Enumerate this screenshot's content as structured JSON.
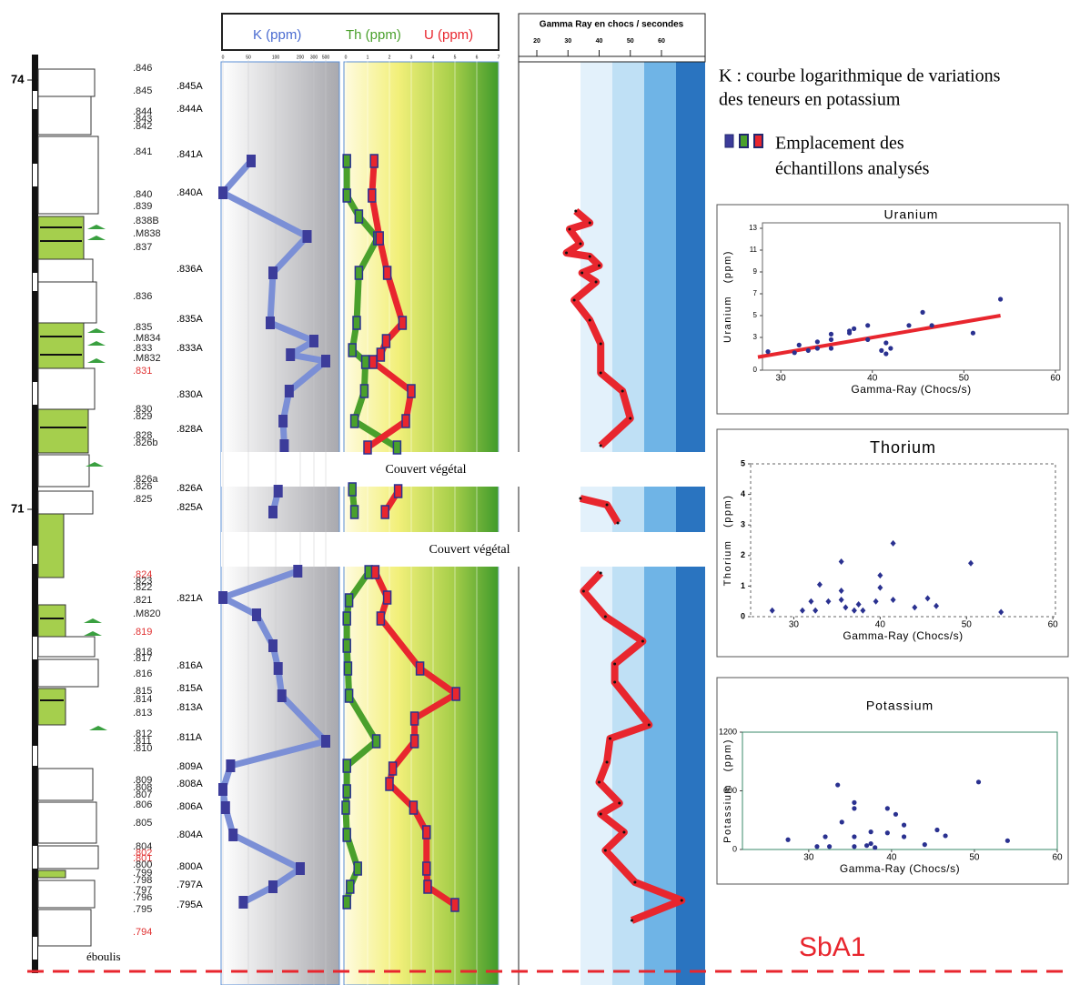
{
  "column": {
    "depth_marks": [
      74,
      71
    ],
    "samples": [
      ".846",
      ".845",
      ".844",
      ".843",
      ".842",
      ".841",
      ".840",
      ".839",
      ".838B",
      ".M838",
      ".837",
      ".836",
      ".835",
      ".M834",
      ".833",
      ".M832",
      {
        "label": ".831",
        "color": "#e03030"
      },
      ".830",
      ".829",
      ".828",
      ".826b",
      ".826a",
      ".826",
      ".825",
      {
        "label": ".824",
        "color": "#e03030"
      },
      ".823",
      ".822",
      ".821",
      ".M820",
      {
        "label": ".819",
        "color": "#e03030"
      },
      ".818",
      ".817",
      ".816",
      ".815",
      ".814",
      ".813",
      ".812",
      ".811",
      ".810",
      ".809",
      ".808",
      ".807",
      ".806",
      ".805",
      ".804",
      {
        "label": ".802",
        "color": "#e03030"
      },
      {
        "label": ".801",
        "color": "#e03030"
      },
      ".800",
      ".799",
      ".798",
      ".797",
      ".796",
      ".795",
      {
        "label": ".794",
        "color": "#e03030"
      }
    ],
    "sampled_levels": [
      ".845A",
      ".844A",
      ".841A",
      ".840A",
      ".836A",
      ".835A",
      ".833A",
      ".830A",
      ".828A",
      ".826A",
      ".825A",
      ".821A",
      ".816A",
      ".815A",
      ".813A",
      ".811A",
      ".809A",
      ".808A",
      ".806A",
      ".804A",
      ".800A",
      ".797A",
      ".795A"
    ],
    "note": "éboulis"
  },
  "logs": {
    "header": {
      "k": "K (ppm)",
      "th": "Th (ppm)",
      "u": "U (ppm)"
    },
    "k_ticks": [
      0,
      50,
      100,
      200,
      300,
      500
    ],
    "thu_ticks": [
      0,
      1,
      2,
      3,
      4,
      5,
      6,
      7
    ],
    "k": {
      "color": "#4a5bb5",
      "values": [
        55,
        0,
        250,
        95,
        90,
        300,
        160,
        500,
        155,
        130,
        135,
        null,
        110,
        95,
        null,
        190,
        0,
        65,
        95,
        110,
        125,
        500,
        15,
        0,
        5,
        20,
        200,
        95,
        40
      ]
    },
    "th": {
      "color": "#4aa02c",
      "values": [
        0.05,
        0.05,
        0.6,
        1.45,
        0.6,
        0.5,
        0.3,
        0.9,
        0.85,
        0.4,
        2.35,
        null,
        0.3,
        0.4,
        null,
        1.05,
        0.15,
        0.05,
        0.05,
        0.1,
        0.15,
        1.4,
        0.05,
        0.05,
        0,
        0.05,
        0.55,
        0.2,
        0.05
      ]
    },
    "u": {
      "color": "#e8262e",
      "values": [
        1.3,
        1.2,
        1.55,
        1.9,
        2.6,
        1.85,
        1.6,
        1.25,
        3.0,
        2.75,
        1.0,
        null,
        2.4,
        1.8,
        null,
        1.35,
        1.9,
        1.6,
        3.4,
        5.05,
        3.15,
        3.15,
        2.15,
        2.0,
        3.1,
        3.7,
        3.7,
        3.75,
        5.0
      ]
    },
    "gamma": {
      "title": "Gamma Ray en chocs / secondes",
      "ticks": [
        20,
        30,
        40,
        50,
        60
      ],
      "color": "#e8262e",
      "values": [
        32.5,
        37,
        30.5,
        34,
        29.5,
        37,
        40,
        34.5,
        39,
        32,
        37,
        40.5,
        40.5,
        47.5,
        50,
        40.5,
        null,
        34,
        42.5,
        46,
        null,
        40.5,
        35,
        42,
        54,
        45,
        45,
        56,
        43.5,
        42.5,
        40,
        46.5,
        40.5,
        48,
        42,
        51.5,
        66.5,
        50.5
      ]
    },
    "cover": [
      "Couvert végétal",
      "Couvert végétal"
    ]
  },
  "notes": {
    "k_note": [
      "K : courbe logarithmique de variations",
      "des teneurs en potassium"
    ],
    "legend": [
      "Emplacement des",
      "échantillons analysés"
    ]
  },
  "chart_data": [
    {
      "type": "scatter",
      "title": "Uranium",
      "x_label": "Gamma-Ray (Chocs/s)",
      "y_label": "Uranium   (ppm)",
      "color": "#2a3190",
      "xlim": [
        28,
        60.5
      ],
      "ylim": [
        0,
        13.5
      ],
      "xticks": [
        30,
        40,
        50,
        60
      ],
      "yticks": [
        0,
        3,
        5,
        7,
        9,
        11,
        13
      ],
      "x": [
        28.6,
        31.5,
        32,
        33,
        34,
        34,
        35.5,
        35.5,
        35.5,
        37.5,
        37.5,
        38,
        39.5,
        39.5,
        41,
        41.5,
        41.5,
        42,
        44,
        45.5,
        46.5,
        51,
        54
      ],
      "y": [
        1.7,
        1.6,
        2.3,
        1.8,
        2.0,
        2.6,
        2.0,
        2.8,
        3.3,
        3.6,
        3.4,
        3.8,
        2.8,
        4.1,
        1.8,
        2.5,
        1.5,
        2.0,
        4.1,
        5.3,
        4.1,
        3.4,
        6.5
      ],
      "trendline": {
        "x": [
          27.5,
          54
        ],
        "y": [
          1.2,
          5.0
        ],
        "color": "#e8262e"
      }
    },
    {
      "type": "scatter",
      "title": "Thorium",
      "x_label": "Gamma-Ray (Chocs/s)",
      "y_label": "Thorium   (ppm)",
      "color": "#2a3190",
      "xlim": [
        25,
        60.3
      ],
      "ylim": [
        0,
        5
      ],
      "xticks": [
        30,
        40,
        50,
        60
      ],
      "yticks": [
        0,
        1,
        2,
        3,
        4,
        5
      ],
      "x": [
        27.5,
        31,
        32,
        32.5,
        33,
        34,
        35.5,
        35.5,
        35.5,
        36,
        37,
        37.5,
        38,
        39.5,
        40,
        40,
        41.5,
        41.5,
        44,
        45.5,
        46.5,
        50.5,
        54
      ],
      "y": [
        0.2,
        0.2,
        0.5,
        0.2,
        1.05,
        0.5,
        1.8,
        0.85,
        0.55,
        0.3,
        0.2,
        0.4,
        0.2,
        0.5,
        1.35,
        0.95,
        2.4,
        0.55,
        0.3,
        0.6,
        0.35,
        1.75,
        0.15
      ]
    },
    {
      "type": "scatter",
      "title": "Potassium",
      "x_label": "Gamma-Ray (Chocs/s)",
      "y_label": "Potassium   (ppm)",
      "color": "#2a3190",
      "xlim": [
        22,
        60
      ],
      "ylim": [
        0,
        1200
      ],
      "xticks": [
        30,
        40,
        50,
        60
      ],
      "yticks": [
        0,
        600,
        1200
      ],
      "x": [
        27.5,
        31,
        32,
        32.5,
        33.5,
        34,
        35.5,
        35.5,
        35.5,
        35.5,
        37,
        37.5,
        37.5,
        38,
        39.5,
        39.5,
        40.5,
        41.5,
        41.5,
        44,
        45.5,
        46.5,
        50.5,
        54
      ],
      "y": [
        100,
        30,
        130,
        30,
        660,
        280,
        480,
        420,
        130,
        30,
        40,
        180,
        60,
        20,
        420,
        170,
        360,
        250,
        130,
        50,
        200,
        140,
        690,
        90
      ]
    }
  ],
  "footer": "SbA1"
}
